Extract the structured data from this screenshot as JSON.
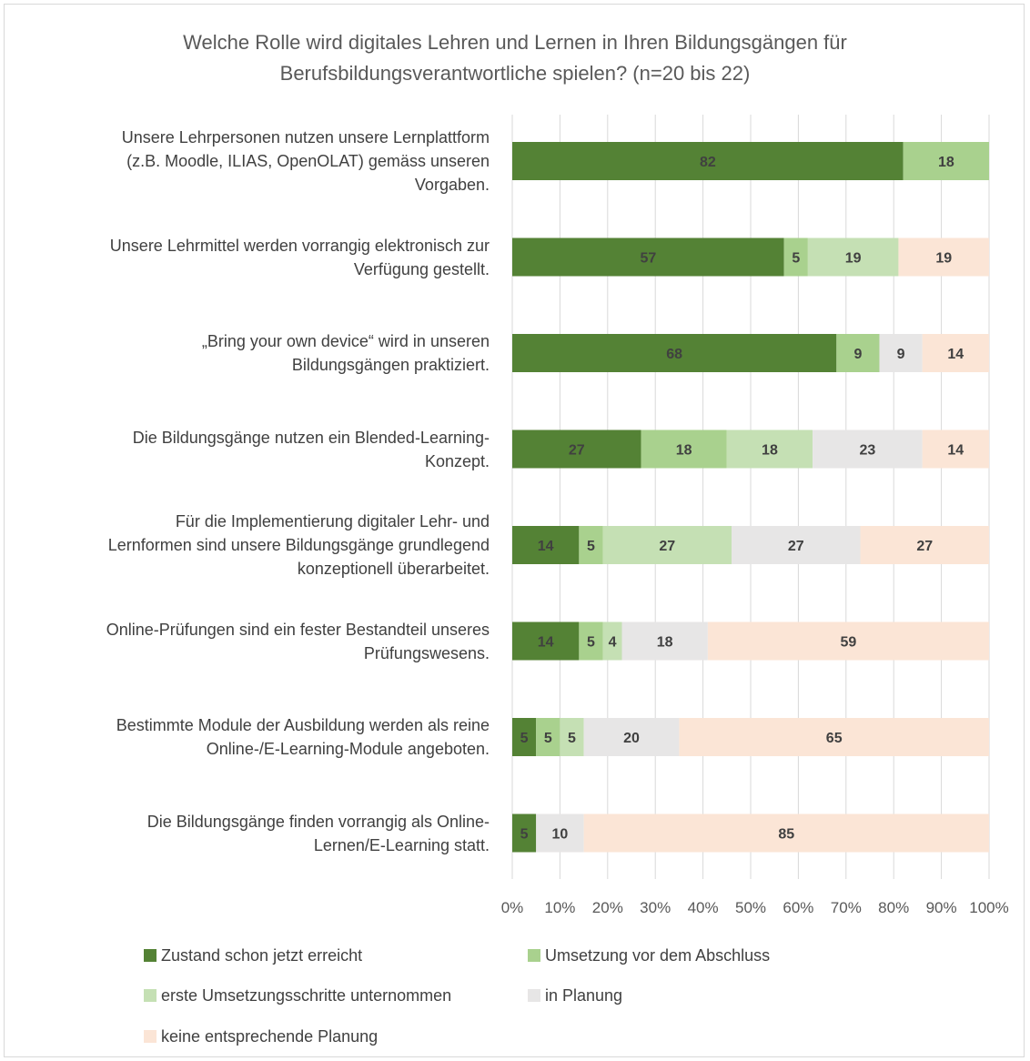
{
  "chart_data": {
    "type": "bar",
    "orientation": "horizontal",
    "stacked": true,
    "title_lines": [
      "Welche Rolle wird digitales Lehren und Lernen in Ihren Bildungsgängen für",
      "Berufsbildungsverantwortliche spielen? (n=20 bis 22)"
    ],
    "categories": [
      [
        "Unsere Lehrpersonen nutzen unsere Lernplattform",
        "(z.B. Moodle, ILIAS, OpenOLAT) gemäss unseren",
        "Vorgaben."
      ],
      [
        "Unsere Lehrmittel werden vorrangig elektronisch zur",
        "Verfügung gestellt."
      ],
      [
        "„Bring your own device“ wird in unseren",
        "Bildungsgängen praktiziert."
      ],
      [
        "Die Bildungsgänge nutzen ein Blended-Learning-",
        "Konzept."
      ],
      [
        "Für die Implementierung digitaler Lehr- und",
        "Lernformen sind unsere Bildungsgänge grundlegend",
        "konzeptionell überarbeitet."
      ],
      [
        "Online-Prüfungen sind ein fester Bestandteil unseres",
        "Prüfungswesens."
      ],
      [
        "Bestimmte Module der Ausbildung werden als reine",
        "Online-/E-Learning-Module angeboten."
      ],
      [
        "Die Bildungsgänge finden vorrangig als Online-",
        "Lernen/E-Learning statt."
      ]
    ],
    "series": [
      {
        "name": "Zustand schon jetzt erreicht",
        "color": "#548235",
        "values": [
          82,
          57,
          68,
          27,
          14,
          14,
          5,
          5
        ]
      },
      {
        "name": "Umsetzung vor dem Abschluss",
        "color": "#a9d18e",
        "values": [
          18,
          5,
          9,
          18,
          5,
          5,
          5,
          0
        ]
      },
      {
        "name": "erste Umsetzungsschritte unternommen",
        "color": "#c5e0b4",
        "values": [
          0,
          19,
          0,
          18,
          27,
          4,
          5,
          0
        ]
      },
      {
        "name": "in Planung",
        "color": "#e7e6e6",
        "values": [
          0,
          0,
          9,
          23,
          27,
          18,
          20,
          10
        ]
      },
      {
        "name": "keine entsprechende Planung",
        "color": "#fbe5d6",
        "values": [
          0,
          19,
          14,
          14,
          27,
          59,
          65,
          85
        ]
      }
    ],
    "xlim": [
      0,
      100
    ],
    "x_ticks": [
      "0%",
      "10%",
      "20%",
      "30%",
      "40%",
      "50%",
      "60%",
      "70%",
      "80%",
      "90%",
      "100%"
    ],
    "grid": true,
    "legend_position": "bottom",
    "label_color": "#404040"
  }
}
